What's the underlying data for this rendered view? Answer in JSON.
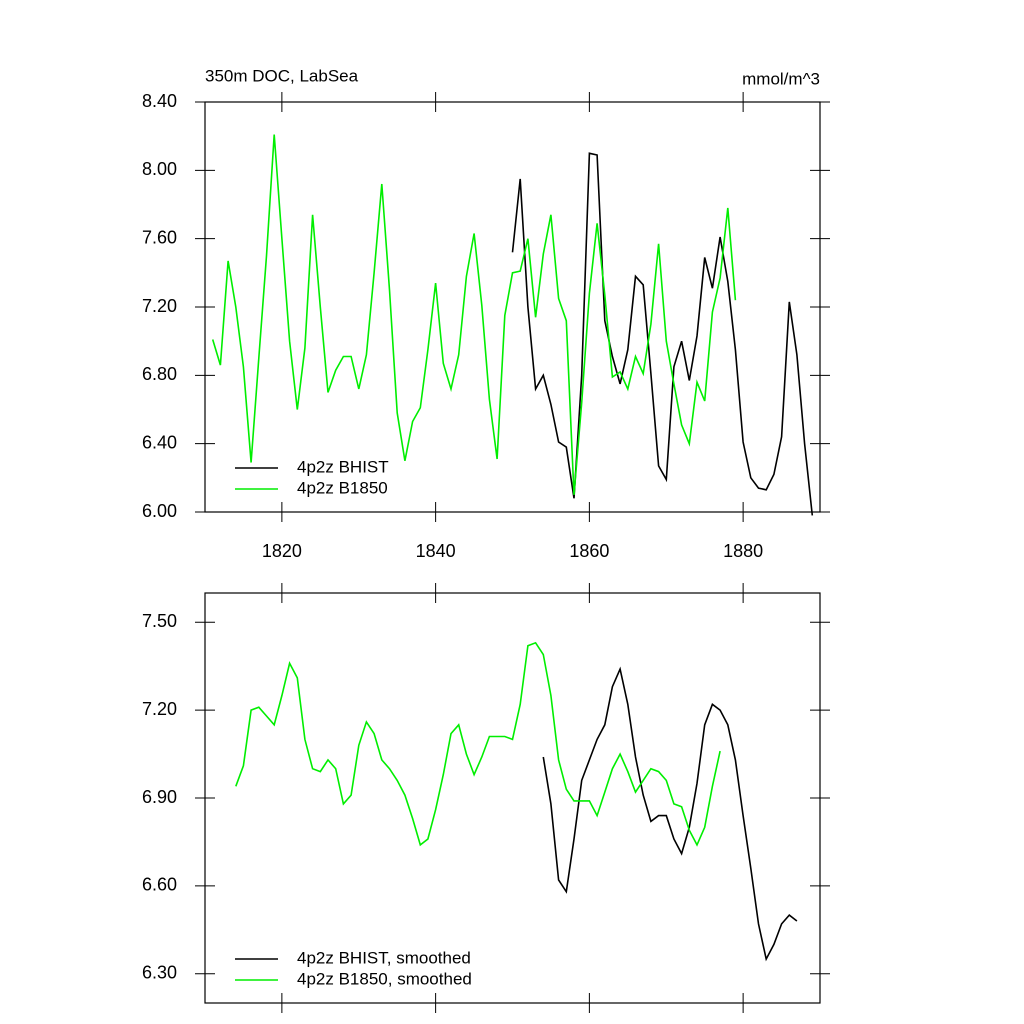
{
  "chart_data": [
    {
      "type": "line",
      "title": "350m DOC, LabSea",
      "right_title": "mmol/m^3",
      "xlim": [
        1810,
        1890
      ],
      "xticks": [
        1820,
        1840,
        1860,
        1880
      ],
      "xtick_labels": true,
      "ylim": [
        6.0,
        8.4
      ],
      "yticks": [
        {
          "value": 6.0,
          "label": "6.00"
        },
        {
          "value": 6.4,
          "label": "6.40"
        },
        {
          "value": 6.8,
          "label": "6.80"
        },
        {
          "value": 7.2,
          "label": "7.20"
        },
        {
          "value": 7.6,
          "label": "7.60"
        },
        {
          "value": 8.0,
          "label": "8.00"
        },
        {
          "value": 8.4,
          "label": "8.40"
        }
      ],
      "legend": "lower left",
      "series": [
        {
          "name": "4p2z BHIST",
          "color": "#000000",
          "x": [
            1850,
            1851,
            1852,
            1853,
            1854,
            1855,
            1856,
            1857,
            1858,
            1859,
            1860,
            1861,
            1862,
            1863,
            1864,
            1865,
            1866,
            1867,
            1868,
            1869,
            1870,
            1871,
            1872,
            1873,
            1874,
            1875,
            1876,
            1877,
            1878,
            1879,
            1880,
            1881,
            1882,
            1883,
            1884,
            1885,
            1886,
            1887,
            1888,
            1889
          ],
          "values": [
            7.52,
            7.95,
            7.2,
            6.72,
            6.8,
            6.63,
            6.41,
            6.38,
            6.08,
            6.8,
            8.1,
            8.09,
            7.12,
            6.91,
            6.75,
            6.95,
            7.38,
            7.33,
            6.81,
            6.27,
            6.19,
            6.85,
            7.0,
            6.77,
            7.03,
            7.49,
            7.31,
            7.61,
            7.35,
            6.95,
            6.41,
            6.2,
            6.14,
            6.13,
            6.22,
            6.44,
            7.23,
            6.92,
            6.4,
            5.98
          ]
        },
        {
          "name": "4p2z B1850",
          "color": "#00ee00",
          "x": [
            1811,
            1812,
            1813,
            1814,
            1815,
            1816,
            1817,
            1818,
            1819,
            1820,
            1821,
            1822,
            1823,
            1824,
            1825,
            1826,
            1827,
            1828,
            1829,
            1830,
            1831,
            1832,
            1833,
            1834,
            1835,
            1836,
            1837,
            1838,
            1839,
            1840,
            1841,
            1842,
            1843,
            1844,
            1845,
            1846,
            1847,
            1848,
            1849,
            1850,
            1851,
            1852,
            1853,
            1854,
            1855,
            1856,
            1857,
            1858,
            1859,
            1860,
            1861,
            1862,
            1863,
            1864,
            1865,
            1866,
            1867,
            1868,
            1869,
            1870,
            1871,
            1872,
            1873,
            1874,
            1875,
            1876,
            1877,
            1878,
            1879
          ],
          "values": [
            7.01,
            6.86,
            7.47,
            7.2,
            6.85,
            6.29,
            6.9,
            7.5,
            8.21,
            7.6,
            7.0,
            6.6,
            6.96,
            7.74,
            7.2,
            6.7,
            6.83,
            6.91,
            6.91,
            6.72,
            6.92,
            7.4,
            7.92,
            7.3,
            6.58,
            6.3,
            6.53,
            6.61,
            6.95,
            7.34,
            6.87,
            6.72,
            6.92,
            7.38,
            7.63,
            7.21,
            6.66,
            6.31,
            7.15,
            7.4,
            7.41,
            7.6,
            7.14,
            7.51,
            7.74,
            7.25,
            7.12,
            6.1,
            6.64,
            7.28,
            7.69,
            7.27,
            6.79,
            6.82,
            6.72,
            6.91,
            6.81,
            7.1,
            7.57,
            7.0,
            6.75,
            6.51,
            6.4,
            6.76,
            6.65,
            7.17,
            7.37,
            7.78,
            7.24
          ]
        }
      ]
    },
    {
      "type": "line",
      "xlim": [
        1810,
        1890
      ],
      "xticks": [
        1820,
        1840,
        1860,
        1880
      ],
      "xtick_labels": false,
      "ylim": [
        6.2,
        7.6
      ],
      "yticks": [
        {
          "value": 6.3,
          "label": "6.30"
        },
        {
          "value": 6.6,
          "label": "6.60"
        },
        {
          "value": 6.9,
          "label": "6.90"
        },
        {
          "value": 7.2,
          "label": "7.20"
        },
        {
          "value": 7.5,
          "label": "7.50"
        }
      ],
      "legend": "lower left",
      "series": [
        {
          "name": "4p2z BHIST, smoothed",
          "color": "#000000",
          "x": [
            1854,
            1855,
            1856,
            1857,
            1858,
            1859,
            1860,
            1861,
            1862,
            1863,
            1864,
            1865,
            1866,
            1867,
            1868,
            1869,
            1870,
            1871,
            1872,
            1873,
            1874,
            1875,
            1876,
            1877,
            1878,
            1879,
            1880,
            1881,
            1882,
            1883,
            1884,
            1885,
            1886,
            1887
          ],
          "values": [
            7.04,
            6.88,
            6.62,
            6.58,
            6.76,
            6.96,
            7.03,
            7.1,
            7.15,
            7.28,
            7.34,
            7.22,
            7.04,
            6.91,
            6.82,
            6.84,
            6.84,
            6.76,
            6.71,
            6.8,
            6.95,
            7.15,
            7.22,
            7.2,
            7.15,
            7.03,
            6.84,
            6.66,
            6.47,
            6.35,
            6.4,
            6.47,
            6.5,
            6.48
          ]
        },
        {
          "name": "4p2z B1850, smoothed",
          "color": "#00ee00",
          "x": [
            1814,
            1815,
            1816,
            1817,
            1818,
            1819,
            1820,
            1821,
            1822,
            1823,
            1824,
            1825,
            1826,
            1827,
            1828,
            1829,
            1830,
            1831,
            1832,
            1833,
            1834,
            1835,
            1836,
            1837,
            1838,
            1839,
            1840,
            1841,
            1842,
            1843,
            1844,
            1845,
            1846,
            1847,
            1848,
            1849,
            1850,
            1851,
            1852,
            1853,
            1854,
            1855,
            1856,
            1857,
            1858,
            1859,
            1860,
            1861,
            1862,
            1863,
            1864,
            1865,
            1866,
            1867,
            1868,
            1869,
            1870,
            1871,
            1872,
            1873,
            1874,
            1875,
            1876,
            1877
          ],
          "values": [
            6.94,
            7.01,
            7.2,
            7.21,
            7.18,
            7.15,
            7.25,
            7.36,
            7.31,
            7.1,
            7.0,
            6.99,
            7.03,
            7.0,
            6.88,
            6.91,
            7.08,
            7.16,
            7.12,
            7.03,
            7.0,
            6.96,
            6.91,
            6.83,
            6.74,
            6.76,
            6.86,
            6.98,
            7.12,
            7.15,
            7.05,
            6.98,
            7.04,
            7.11,
            7.11,
            7.11,
            7.1,
            7.22,
            7.42,
            7.43,
            7.39,
            7.25,
            7.03,
            6.93,
            6.89,
            6.89,
            6.89,
            6.84,
            6.92,
            7.0,
            7.05,
            6.99,
            6.92,
            6.96,
            7.0,
            6.99,
            6.96,
            6.88,
            6.87,
            6.79,
            6.74,
            6.8,
            6.94,
            7.06
          ]
        }
      ]
    }
  ]
}
